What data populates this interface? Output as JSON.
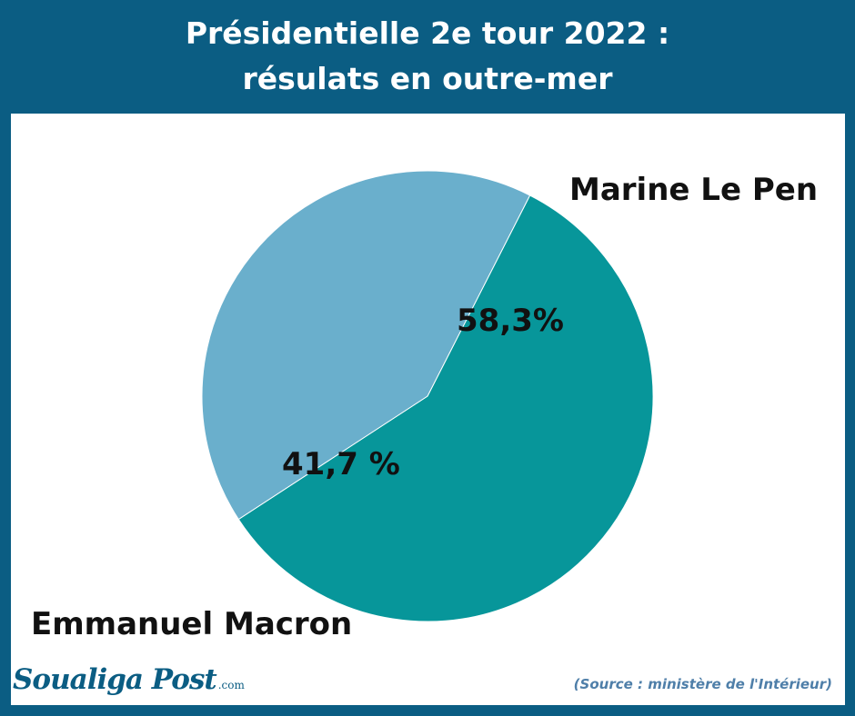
{
  "title_lines": [
    "Présidentielle 2e tour 2022 :",
    "résulats en outre-mer"
  ],
  "chart_data": {
    "type": "pie",
    "slices": [
      {
        "name": "Marine Le Pen",
        "value": 58.3,
        "label": "58,3%",
        "color": "#07969a"
      },
      {
        "name": "Emmanuel Macron",
        "value": 41.7,
        "label": "41,7 %",
        "color": "#6aafcc"
      }
    ],
    "start_angle_deg": 297
  },
  "logo": {
    "main": "Soualiga Post",
    "suffix": ".com"
  },
  "source": "(Source : ministère de l'Intérieur)",
  "colors": {
    "background": "#0b5d83",
    "panel": "#ffffff",
    "slice_border": "#ffffff"
  }
}
